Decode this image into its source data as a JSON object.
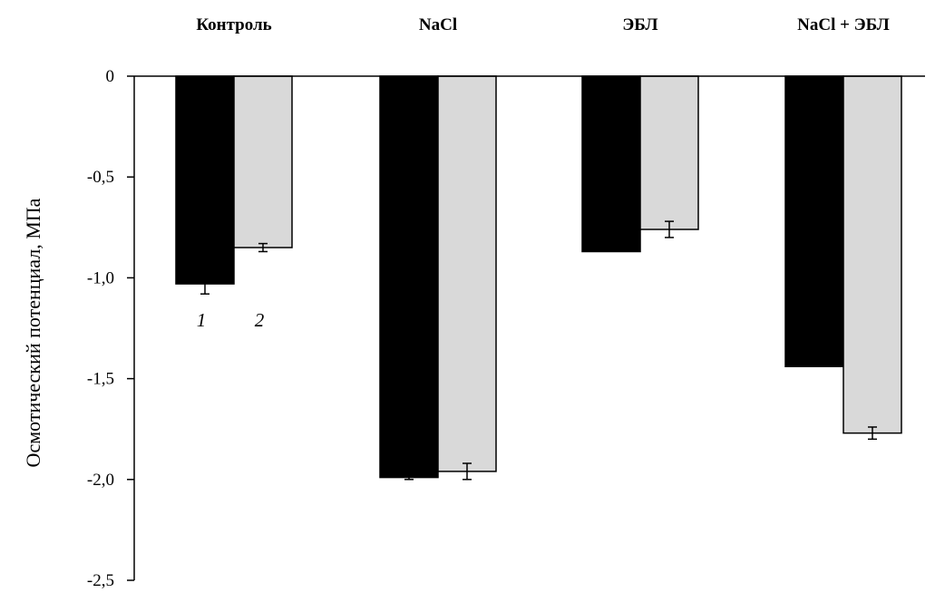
{
  "chart_data": {
    "type": "bar",
    "title": "",
    "xlabel": "",
    "ylabel": "Осмотический потенциал, МПа",
    "categories": [
      "Контроль",
      "NaCl",
      "ЭБЛ",
      "NaCl + ЭБЛ"
    ],
    "series": [
      {
        "name": "1",
        "color": "#000000",
        "values": [
          -1.03,
          -1.99,
          -0.87,
          -1.44
        ],
        "errors": [
          0.05,
          0.01,
          0.0,
          0.0
        ]
      },
      {
        "name": "2",
        "color": "#d9d9d9",
        "values": [
          -0.85,
          -1.96,
          -0.76,
          -1.77
        ],
        "errors": [
          0.02,
          0.04,
          0.04,
          0.03
        ]
      }
    ],
    "ylim": [
      -2.5,
      0
    ],
    "yticks": [
      "0",
      "-0,5",
      "-1,0",
      "-1,5",
      "-2,0",
      "-2,5"
    ],
    "ytick_values": [
      0,
      -0.5,
      -1.0,
      -1.5,
      -2.0,
      -2.5
    ],
    "category_labels_position": "top",
    "grid": false,
    "series_annotation_category": 0
  }
}
